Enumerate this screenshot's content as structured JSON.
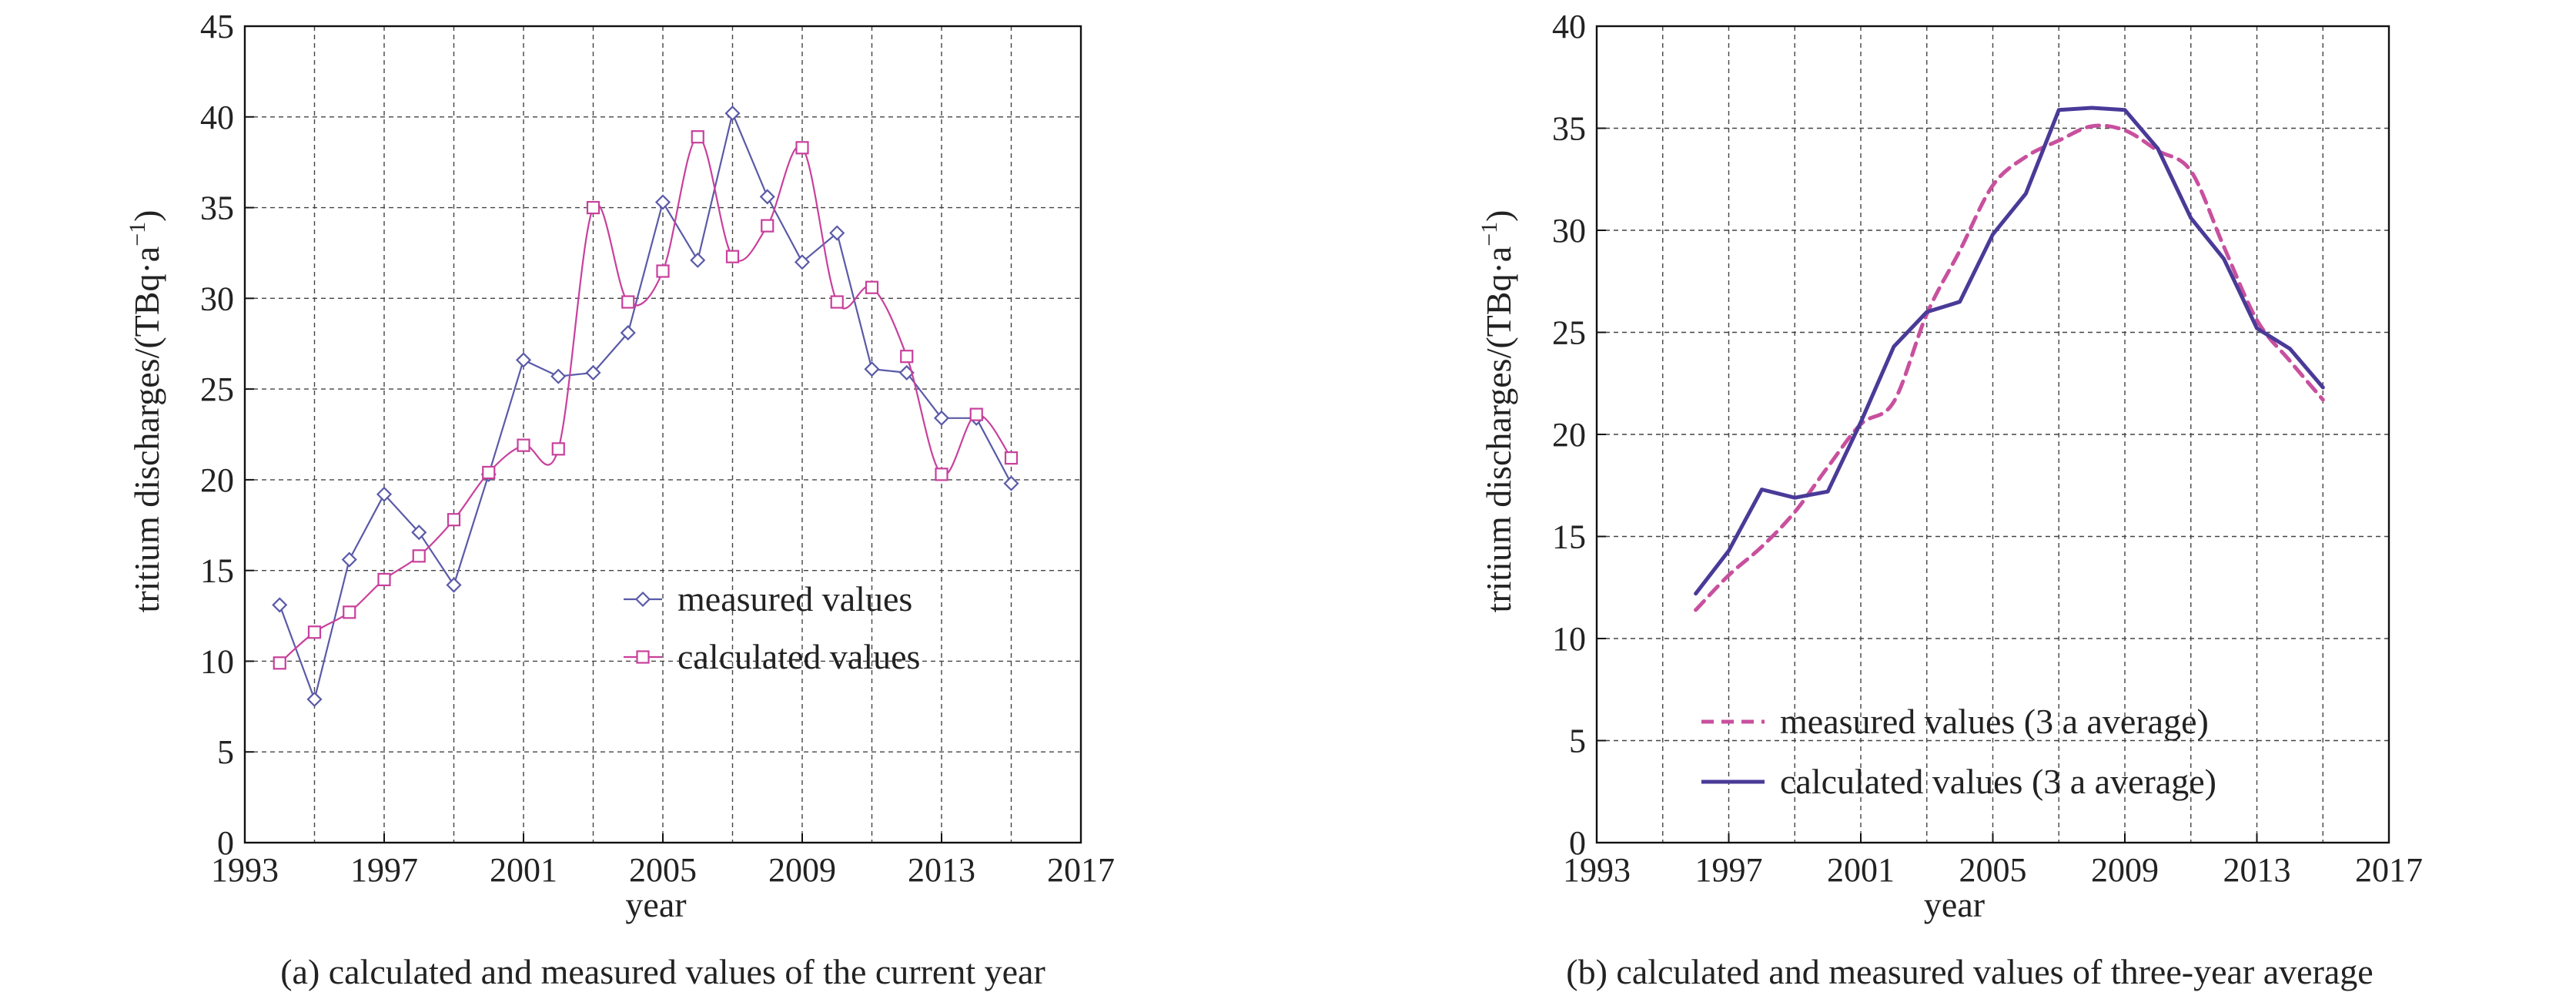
{
  "chart_data": [
    {
      "type": "line",
      "caption": "(a) calculated and measured values of the current year",
      "xlabel": "year",
      "ylabel": "tritium discharges/(TBq·a",
      "ylabel_sup": "−1",
      "ylabel_close": ")",
      "xlim": [
        1993,
        2017
      ],
      "ylim": [
        0,
        45
      ],
      "xticks": [
        1993,
        1997,
        2001,
        2005,
        2009,
        2013,
        2017
      ],
      "yticks": [
        0,
        5,
        10,
        15,
        20,
        25,
        30,
        35,
        40,
        45
      ],
      "xgrid_step": 2,
      "grid": true,
      "legend_position": "center-right",
      "series": [
        {
          "name": "measured values",
          "color": "#5a5aa8",
          "marker": "diamond",
          "dashed": false,
          "smooth": false,
          "x": [
            1994,
            1995,
            1996,
            1997,
            1998,
            1999,
            2000,
            2001,
            2002,
            2003,
            2004,
            2005,
            2006,
            2007,
            2008,
            2009,
            2010,
            2011,
            2012,
            2013,
            2014,
            2015
          ],
          "y": [
            13.1,
            7.9,
            15.6,
            19.2,
            17.1,
            14.2,
            20.3,
            26.6,
            25.7,
            25.9,
            28.1,
            35.3,
            32.1,
            40.2,
            35.6,
            32.0,
            33.6,
            26.1,
            25.9,
            23.4,
            23.4,
            19.8
          ]
        },
        {
          "name": "calculated values",
          "color": "#c8409c",
          "marker": "square",
          "dashed": false,
          "smooth": true,
          "x": [
            1994,
            1995,
            1996,
            1997,
            1998,
            1999,
            2000,
            2001,
            2002,
            2003,
            2004,
            2005,
            2006,
            2007,
            2008,
            2009,
            2010,
            2011,
            2012,
            2013,
            2014,
            2015
          ],
          "y": [
            9.9,
            11.6,
            12.7,
            14.5,
            15.8,
            17.8,
            20.4,
            21.9,
            21.7,
            35.0,
            29.8,
            31.5,
            38.9,
            32.3,
            34.0,
            38.3,
            29.8,
            30.6,
            26.8,
            20.3,
            23.6,
            21.2
          ]
        }
      ]
    },
    {
      "type": "line",
      "caption": "(b) calculated and measured values of three-year average",
      "xlabel": "year",
      "ylabel": "tritium discharges/(TBq·a",
      "ylabel_sup": "−1",
      "ylabel_close": ")",
      "xlim": [
        1993,
        2017
      ],
      "ylim": [
        0,
        40
      ],
      "xticks": [
        1993,
        1997,
        2001,
        2005,
        2009,
        2013,
        2017
      ],
      "yticks": [
        0,
        5,
        10,
        15,
        20,
        25,
        30,
        35,
        40
      ],
      "xgrid_step": 2,
      "grid": true,
      "legend_position": "bottom-right",
      "series": [
        {
          "name": "measured values (3 a average)",
          "color": "#c8509e",
          "marker": "none",
          "dashed": true,
          "smooth": true,
          "x": [
            1996,
            1997,
            1998,
            1999,
            2000,
            2001,
            2002,
            2003,
            2004,
            2005,
            2006,
            2007,
            2008,
            2009,
            2010,
            2011,
            2012,
            2013,
            2014,
            2015
          ],
          "y": [
            11.4,
            13.1,
            14.5,
            16.2,
            18.4,
            20.5,
            21.6,
            25.9,
            29.0,
            32.2,
            33.6,
            34.4,
            35.1,
            34.9,
            33.9,
            32.9,
            29.2,
            25.6,
            23.6,
            21.7
          ]
        },
        {
          "name": "calculated values (3 a average)",
          "color": "#4a3a98",
          "marker": "none",
          "dashed": false,
          "smooth": false,
          "x": [
            1996,
            1997,
            1998,
            1999,
            2000,
            2001,
            2002,
            2003,
            2004,
            2005,
            2006,
            2007,
            2008,
            2009,
            2010,
            2011,
            2012,
            2013,
            2014,
            2015
          ],
          "y": [
            12.2,
            14.3,
            17.3,
            16.9,
            17.2,
            20.6,
            24.3,
            26.0,
            26.5,
            29.8,
            31.8,
            35.9,
            36.0,
            35.9,
            34.0,
            30.6,
            28.6,
            25.2,
            24.2,
            22.3
          ]
        }
      ]
    }
  ]
}
